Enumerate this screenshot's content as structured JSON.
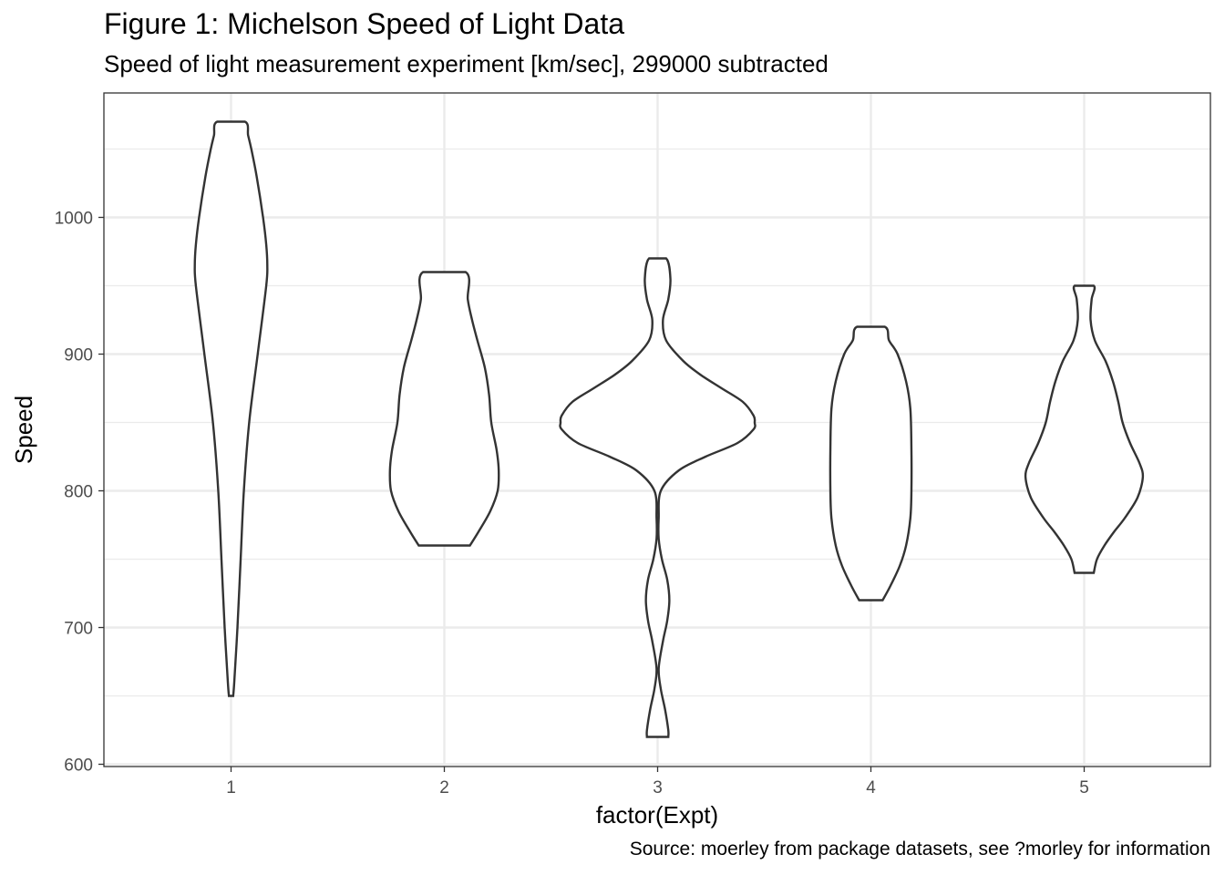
{
  "chart_data": {
    "type": "violin",
    "title": "Figure 1: Michelson Speed of Light Data",
    "subtitle": "Speed of light measurement experiment [km/sec], 299000 subtracted",
    "caption": "Source: moerley from package datasets, see ?morley for information",
    "xlabel": "factor(Expt)",
    "ylabel": "Speed",
    "categories": [
      "1",
      "2",
      "3",
      "4",
      "5"
    ],
    "ylim": [
      600,
      1090
    ],
    "yticks": [
      600,
      700,
      800,
      900,
      1000
    ],
    "grid": true,
    "series": [
      {
        "category": "1",
        "min": 650,
        "max": 1070,
        "density_profile": [
          [
            650,
            0.02
          ],
          [
            660,
            0.03
          ],
          [
            700,
            0.06
          ],
          [
            750,
            0.09
          ],
          [
            800,
            0.12
          ],
          [
            850,
            0.17
          ],
          [
            900,
            0.25
          ],
          [
            950,
            0.33
          ],
          [
            965,
            0.34
          ],
          [
            980,
            0.33
          ],
          [
            1000,
            0.3
          ],
          [
            1030,
            0.24
          ],
          [
            1050,
            0.19
          ],
          [
            1060,
            0.16
          ],
          [
            1070,
            0.13
          ]
        ]
      },
      {
        "category": "2",
        "min": 760,
        "max": 960,
        "density_profile": [
          [
            760,
            0.24
          ],
          [
            770,
            0.32
          ],
          [
            785,
            0.43
          ],
          [
            800,
            0.5
          ],
          [
            815,
            0.51
          ],
          [
            830,
            0.49
          ],
          [
            850,
            0.44
          ],
          [
            870,
            0.42
          ],
          [
            890,
            0.38
          ],
          [
            910,
            0.31
          ],
          [
            925,
            0.26
          ],
          [
            940,
            0.22
          ],
          [
            960,
            0.2
          ]
        ]
      },
      {
        "category": "3",
        "min": 620,
        "max": 970,
        "density_profile": [
          [
            620,
            0.1
          ],
          [
            625,
            0.1
          ],
          [
            640,
            0.07
          ],
          [
            655,
            0.03
          ],
          [
            670,
            0.01
          ],
          [
            690,
            0.05
          ],
          [
            705,
            0.09
          ],
          [
            720,
            0.11
          ],
          [
            735,
            0.09
          ],
          [
            750,
            0.04
          ],
          [
            765,
            0.01
          ],
          [
            780,
            0.01
          ],
          [
            800,
            0.03
          ],
          [
            815,
            0.2
          ],
          [
            825,
            0.45
          ],
          [
            835,
            0.75
          ],
          [
            845,
            0.9
          ],
          [
            850,
            0.91
          ],
          [
            855,
            0.9
          ],
          [
            865,
            0.8
          ],
          [
            875,
            0.6
          ],
          [
            885,
            0.4
          ],
          [
            895,
            0.24
          ],
          [
            910,
            0.08
          ],
          [
            925,
            0.05
          ],
          [
            940,
            0.1
          ],
          [
            955,
            0.12
          ],
          [
            970,
            0.08
          ]
        ]
      },
      {
        "category": "4",
        "min": 720,
        "max": 920,
        "density_profile": [
          [
            720,
            0.11
          ],
          [
            730,
            0.18
          ],
          [
            745,
            0.27
          ],
          [
            760,
            0.33
          ],
          [
            780,
            0.37
          ],
          [
            800,
            0.38
          ],
          [
            830,
            0.38
          ],
          [
            860,
            0.37
          ],
          [
            880,
            0.33
          ],
          [
            900,
            0.25
          ],
          [
            910,
            0.17
          ],
          [
            920,
            0.13
          ]
        ]
      },
      {
        "category": "5",
        "min": 740,
        "max": 950,
        "density_profile": [
          [
            740,
            0.09
          ],
          [
            750,
            0.12
          ],
          [
            760,
            0.19
          ],
          [
            770,
            0.28
          ],
          [
            780,
            0.38
          ],
          [
            795,
            0.5
          ],
          [
            810,
            0.55
          ],
          [
            820,
            0.52
          ],
          [
            835,
            0.43
          ],
          [
            850,
            0.36
          ],
          [
            865,
            0.32
          ],
          [
            880,
            0.27
          ],
          [
            895,
            0.2
          ],
          [
            910,
            0.1
          ],
          [
            925,
            0.06
          ],
          [
            940,
            0.07
          ],
          [
            950,
            0.09
          ]
        ]
      }
    ]
  }
}
